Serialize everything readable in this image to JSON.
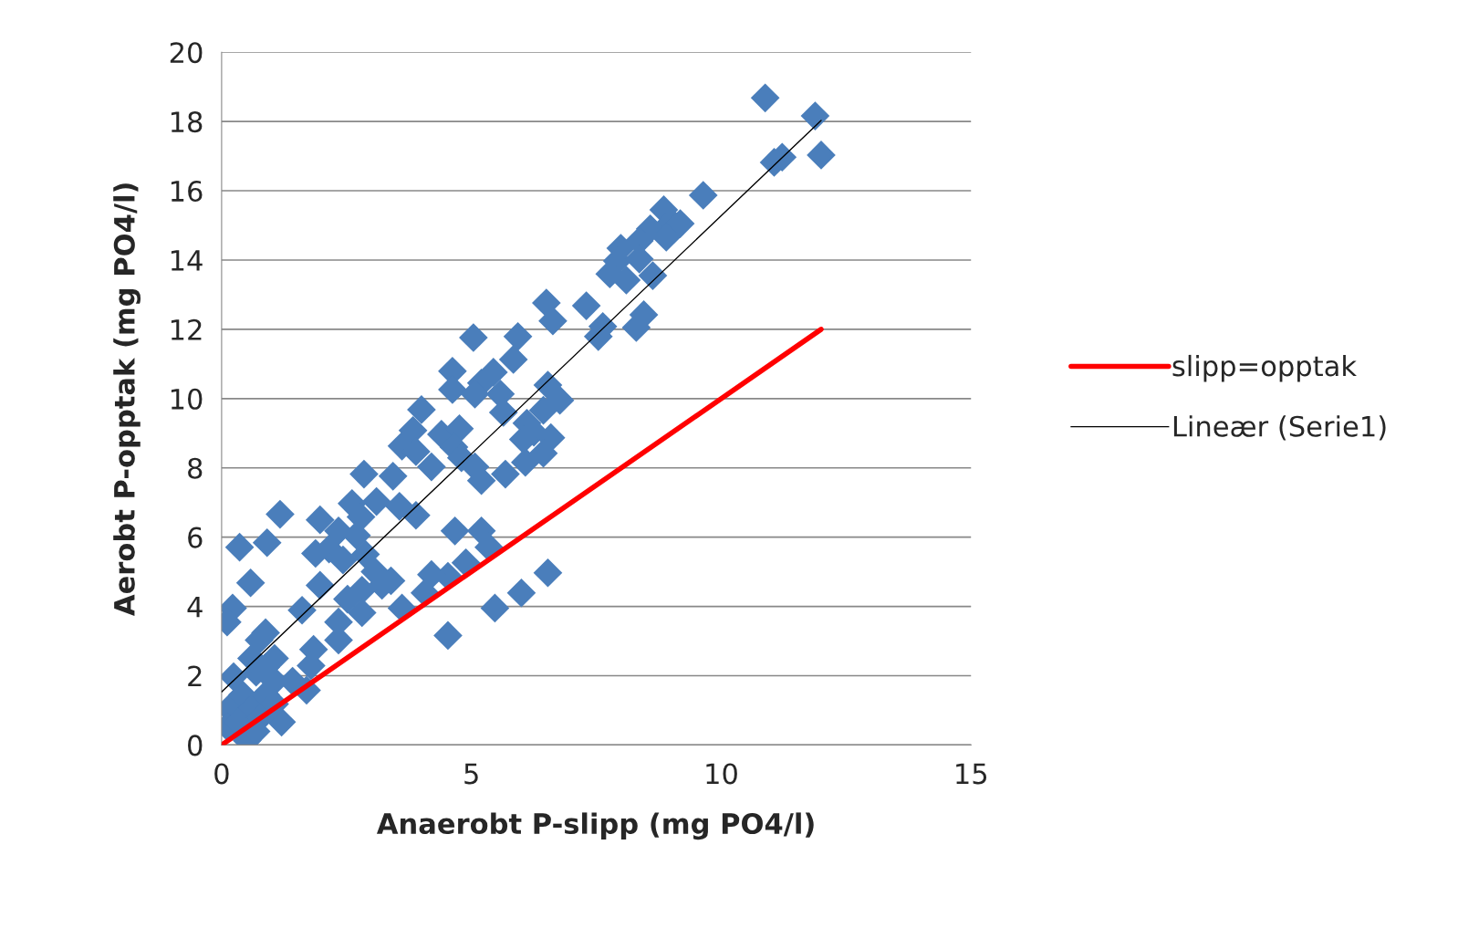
{
  "chart_data": {
    "type": "scatter",
    "xlabel": "Anaerobt P-slipp (mg PO4/l)",
    "ylabel": "Aerobt P-opptak (mg PO4/l)",
    "xlim": [
      0,
      15
    ],
    "xticks": [
      0,
      5,
      10,
      15
    ],
    "ylim": [
      0,
      20
    ],
    "yticks": [
      0,
      2,
      4,
      6,
      8,
      10,
      12,
      14,
      16,
      18,
      20
    ],
    "grid": "y",
    "legend": "right",
    "series": [
      {
        "marker": "diamond",
        "color": "#4a7ebb",
        "x": [
          10.88,
          11.88,
          12.0,
          11.06,
          11.22,
          9.64,
          8.85,
          9.0,
          9.18,
          8.58,
          8.9,
          8.36,
          7.99,
          7.92,
          8.36,
          8.63,
          7.77,
          8.1,
          8.45,
          8.3,
          7.3,
          6.5,
          6.63,
          7.63,
          7.54,
          5.93,
          5.04,
          5.84,
          6.53,
          6.77,
          6.44,
          5.44,
          5.2,
          5.58,
          4.62,
          4.62,
          5.07,
          5.64,
          6.11,
          6.25,
          6.04,
          6.59,
          6.08,
          6.44,
          4.0,
          3.83,
          3.61,
          3.89,
          4.4,
          4.76,
          4.65,
          4.8,
          5.07,
          5.2,
          5.68,
          4.2,
          3.43,
          2.85,
          3.1,
          3.56,
          3.89,
          2.61,
          2.79,
          1.97,
          2.34,
          2.7,
          2.15,
          1.88,
          2.43,
          2.88,
          3.07,
          3.21,
          3.39,
          2.81,
          2.52,
          2.81,
          2.34,
          1.97,
          1.61,
          1.17,
          0.36,
          0.91,
          0.58,
          0.22,
          0.11,
          0.88,
          0.75,
          4.67,
          5.2,
          5.35,
          4.89,
          4.53,
          4.2,
          4.07,
          3.61,
          4.53,
          5.47,
          6.0,
          6.53,
          2.34,
          1.84,
          1.79,
          1.06,
          1.42,
          1.7,
          1.2,
          0.51,
          0.15,
          0.11,
          0.42,
          0.69,
          0.6,
          0.88,
          1.06,
          0.33,
          0.78,
          1.06,
          0.6,
          0.88,
          0.24,
          0.69
        ],
        "values": [
          18.68,
          18.16,
          17.03,
          16.82,
          16.97,
          15.87,
          15.45,
          15.1,
          15.05,
          14.9,
          14.66,
          14.55,
          14.34,
          13.97,
          14.03,
          13.55,
          13.6,
          13.42,
          12.42,
          12.05,
          12.68,
          12.76,
          12.24,
          12.08,
          11.79,
          11.79,
          11.76,
          11.13,
          10.39,
          9.95,
          9.66,
          10.76,
          10.45,
          10.13,
          10.79,
          10.26,
          10.13,
          9.6,
          9.29,
          9.03,
          8.82,
          8.87,
          8.16,
          8.42,
          9.68,
          9.08,
          8.63,
          8.47,
          8.97,
          9.13,
          8.6,
          8.29,
          8.03,
          7.63,
          7.82,
          8.03,
          7.76,
          7.82,
          7.03,
          6.89,
          6.63,
          6.97,
          6.58,
          6.5,
          6.18,
          6.05,
          5.66,
          5.53,
          5.34,
          5.5,
          5.0,
          4.61,
          4.74,
          4.47,
          4.21,
          3.82,
          3.55,
          4.61,
          3.89,
          6.66,
          5.71,
          5.84,
          4.68,
          3.95,
          3.55,
          3.24,
          3.03,
          6.18,
          6.18,
          5.71,
          5.26,
          4.87,
          4.92,
          4.39,
          3.95,
          3.16,
          3.95,
          4.39,
          4.97,
          3.03,
          2.76,
          2.29,
          2.5,
          1.84,
          1.58,
          0.66,
          0.13,
          1.05,
          0.53,
          1.45,
          2.1,
          1.05,
          1.45,
          1.84,
          0.66,
          0.79,
          1.18,
          2.5,
          2.24,
          1.97,
          0.39
        ]
      },
      {
        "type": "line",
        "name": "slipp=opptak",
        "color": "#ff0000",
        "x": [
          0,
          12
        ],
        "values": [
          0,
          12
        ]
      },
      {
        "type": "line",
        "name": "Lineær (Serie1)",
        "color": "#000000",
        "x": [
          0,
          12
        ],
        "values": [
          1.53,
          18.03
        ]
      }
    ]
  }
}
